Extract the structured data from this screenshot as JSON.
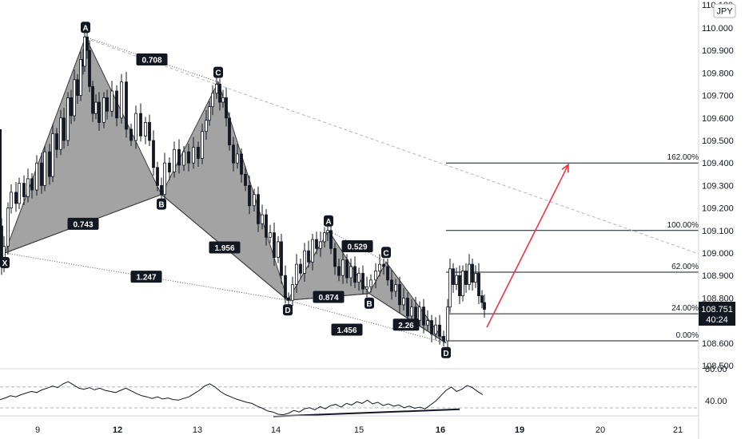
{
  "currency_badge": "JPY",
  "price_box": {
    "price": "108.751",
    "countdown": "40:24"
  },
  "chart_data": {
    "type": "line",
    "subtype": "candlestick-with-harmonic-patterns",
    "price_axis": {
      "ylim": [
        108.45,
        110.1
      ],
      "ticks": [
        110.0,
        109.9,
        109.8,
        109.7,
        109.6,
        109.5,
        109.4,
        109.3,
        109.2,
        109.1,
        109.0,
        108.9,
        108.8,
        108.7,
        108.6,
        108.5
      ],
      "tick_labels": [
        "110.000",
        "109.900",
        "109.800",
        "109.700",
        "109.600",
        "109.500",
        "109.400",
        "109.300",
        "109.200",
        "109.100",
        "109.000",
        "108.900",
        "108.800",
        "108.700",
        "108.600",
        "108.500"
      ],
      "top_partial_label": "110.100"
    },
    "time_axis": {
      "labels": [
        "9",
        "12",
        "13",
        "14",
        "15",
        "16",
        "19",
        "20",
        "21"
      ],
      "bold_labels": [
        "12",
        "16",
        "19"
      ]
    },
    "price_series": [
      [
        0,
        109.12
      ],
      [
        2,
        108.94
      ],
      [
        5,
        109.03
      ],
      [
        10,
        109.2
      ],
      [
        14,
        109.27
      ],
      [
        20,
        109.22
      ],
      [
        24,
        109.31
      ],
      [
        30,
        109.25
      ],
      [
        35,
        109.33
      ],
      [
        40,
        109.28
      ],
      [
        46,
        109.4
      ],
      [
        52,
        109.3
      ],
      [
        56,
        109.45
      ],
      [
        62,
        109.34
      ],
      [
        66,
        109.53
      ],
      [
        71,
        109.46
      ],
      [
        76,
        109.6
      ],
      [
        80,
        109.5
      ],
      [
        85,
        109.69
      ],
      [
        89,
        109.61
      ],
      [
        93,
        109.77
      ],
      [
        97,
        109.7
      ],
      [
        101,
        109.86
      ],
      [
        104,
        109.83
      ],
      [
        106,
        109.96
      ],
      [
        109,
        109.9
      ],
      [
        112,
        109.74
      ],
      [
        116,
        109.62
      ],
      [
        120,
        109.67
      ],
      [
        124,
        109.58
      ],
      [
        130,
        109.69
      ],
      [
        134,
        109.63
      ],
      [
        140,
        109.72
      ],
      [
        146,
        109.6
      ],
      [
        152,
        109.76
      ],
      [
        158,
        109.55
      ],
      [
        164,
        109.5
      ],
      [
        170,
        109.62
      ],
      [
        176,
        109.52
      ],
      [
        182,
        109.58
      ],
      [
        187,
        109.5
      ],
      [
        192,
        109.38
      ],
      [
        197,
        109.3
      ],
      [
        202,
        109.26
      ],
      [
        206,
        109.4
      ],
      [
        212,
        109.36
      ],
      [
        218,
        109.46
      ],
      [
        224,
        109.39
      ],
      [
        230,
        109.45
      ],
      [
        236,
        109.4
      ],
      [
        242,
        109.47
      ],
      [
        248,
        109.42
      ],
      [
        253,
        109.54
      ],
      [
        258,
        109.59
      ],
      [
        262,
        109.65
      ],
      [
        266,
        109.71
      ],
      [
        271,
        109.75
      ],
      [
        275,
        109.67
      ],
      [
        279,
        109.69
      ],
      [
        283,
        109.6
      ],
      [
        287,
        109.48
      ],
      [
        292,
        109.4
      ],
      [
        297,
        109.44
      ],
      [
        302,
        109.35
      ],
      [
        307,
        109.3
      ],
      [
        312,
        109.21
      ],
      [
        318,
        109.26
      ],
      [
        323,
        109.13
      ],
      [
        328,
        109.17
      ],
      [
        333,
        109.07
      ],
      [
        338,
        109.09
      ],
      [
        343,
        108.98
      ],
      [
        348,
        109.05
      ],
      [
        352,
        108.9
      ],
      [
        357,
        108.8
      ],
      [
        361,
        108.79
      ],
      [
        366,
        108.86
      ],
      [
        371,
        108.95
      ],
      [
        376,
        108.91
      ],
      [
        381,
        109.01
      ],
      [
        386,
        108.96
      ],
      [
        391,
        109.06
      ],
      [
        396,
        109.02
      ],
      [
        401,
        109.05
      ],
      [
        406,
        109.09
      ],
      [
        410,
        109.1
      ],
      [
        414,
        109.02
      ],
      [
        419,
        108.94
      ],
      [
        424,
        108.9
      ],
      [
        429,
        108.97
      ],
      [
        434,
        108.89
      ],
      [
        439,
        108.94
      ],
      [
        444,
        108.87
      ],
      [
        449,
        108.91
      ],
      [
        454,
        108.84
      ],
      [
        459,
        108.85
      ],
      [
        464,
        108.88
      ],
      [
        470,
        108.92
      ],
      [
        475,
        108.95
      ],
      [
        480,
        108.94
      ],
      [
        485,
        108.88
      ],
      [
        490,
        108.83
      ],
      [
        495,
        108.86
      ],
      [
        500,
        108.77
      ],
      [
        505,
        108.8
      ],
      [
        510,
        108.72
      ],
      [
        515,
        108.76
      ],
      [
        520,
        108.7
      ],
      [
        525,
        108.76
      ],
      [
        530,
        108.68
      ],
      [
        535,
        108.7
      ],
      [
        540,
        108.64
      ],
      [
        545,
        108.68
      ],
      [
        550,
        108.63
      ],
      [
        555,
        108.61
      ],
      [
        560,
        108.76
      ],
      [
        563,
        108.93
      ],
      [
        567,
        108.86
      ],
      [
        571,
        108.9
      ],
      [
        575,
        108.81
      ],
      [
        579,
        108.92
      ],
      [
        583,
        108.86
      ],
      [
        587,
        108.95
      ],
      [
        591,
        108.87
      ],
      [
        595,
        108.91
      ],
      [
        599,
        108.81
      ],
      [
        603,
        108.78
      ],
      [
        606,
        108.75
      ]
    ],
    "harmonic_patterns": [
      {
        "points": {
          "X": 109.0,
          "A": 109.96,
          "B": 109.26,
          "C": 109.76,
          "D": 108.79
        },
        "point_labels": [
          "X",
          "A",
          "B",
          "C",
          "D"
        ],
        "ratios": {
          "XB": "0.743",
          "AC": "0.708",
          "BD": "1.956",
          "XD": "1.247"
        }
      },
      {
        "points": {
          "X": 108.79,
          "A": 109.1,
          "B": 108.82,
          "C": 108.96,
          "D": 108.6
        },
        "point_labels": [
          "A",
          "B",
          "C",
          "D"
        ],
        "ratios": {
          "XB": "0.874",
          "AC": "0.529",
          "BD": "2.26",
          "XD": "1.456"
        }
      }
    ],
    "fib_extension": {
      "levels": [
        {
          "label": "162.00%",
          "price": 109.4
        },
        {
          "label": "100.00%",
          "price": 109.1
        },
        {
          "label": "62.00%",
          "price": 108.915
        },
        {
          "label": "24.00%",
          "price": 108.73
        },
        {
          "label": "0.00%",
          "price": 108.61
        }
      ]
    },
    "projection_arrow": {
      "from_price": 108.67,
      "to_price": 109.4
    },
    "rsi": {
      "ticks": [
        {
          "label": "80.00",
          "value": 80
        },
        {
          "label": "40.00",
          "value": 40
        }
      ],
      "series": [
        45,
        48,
        52,
        50,
        54,
        57,
        60,
        58,
        63,
        66,
        70,
        67,
        74,
        78,
        72,
        66,
        64,
        67,
        63,
        66,
        62,
        60,
        58,
        62,
        66,
        61,
        56,
        52,
        50,
        47,
        50,
        46,
        48,
        45,
        44,
        47,
        50,
        56,
        62,
        70,
        74,
        68,
        60,
        54,
        50,
        46,
        43,
        40,
        38,
        33,
        29,
        24,
        22,
        18,
        17,
        20,
        25,
        22,
        28,
        30,
        26,
        32,
        28,
        34,
        36,
        31,
        38,
        35,
        41,
        38,
        44,
        37,
        40,
        34,
        37,
        33,
        35,
        30,
        33,
        29,
        31,
        28,
        35,
        42,
        52,
        62,
        68,
        60,
        64,
        71,
        67,
        60,
        54
      ],
      "divergence_line": {
        "from_value": 17,
        "to_value": 30
      }
    }
  }
}
